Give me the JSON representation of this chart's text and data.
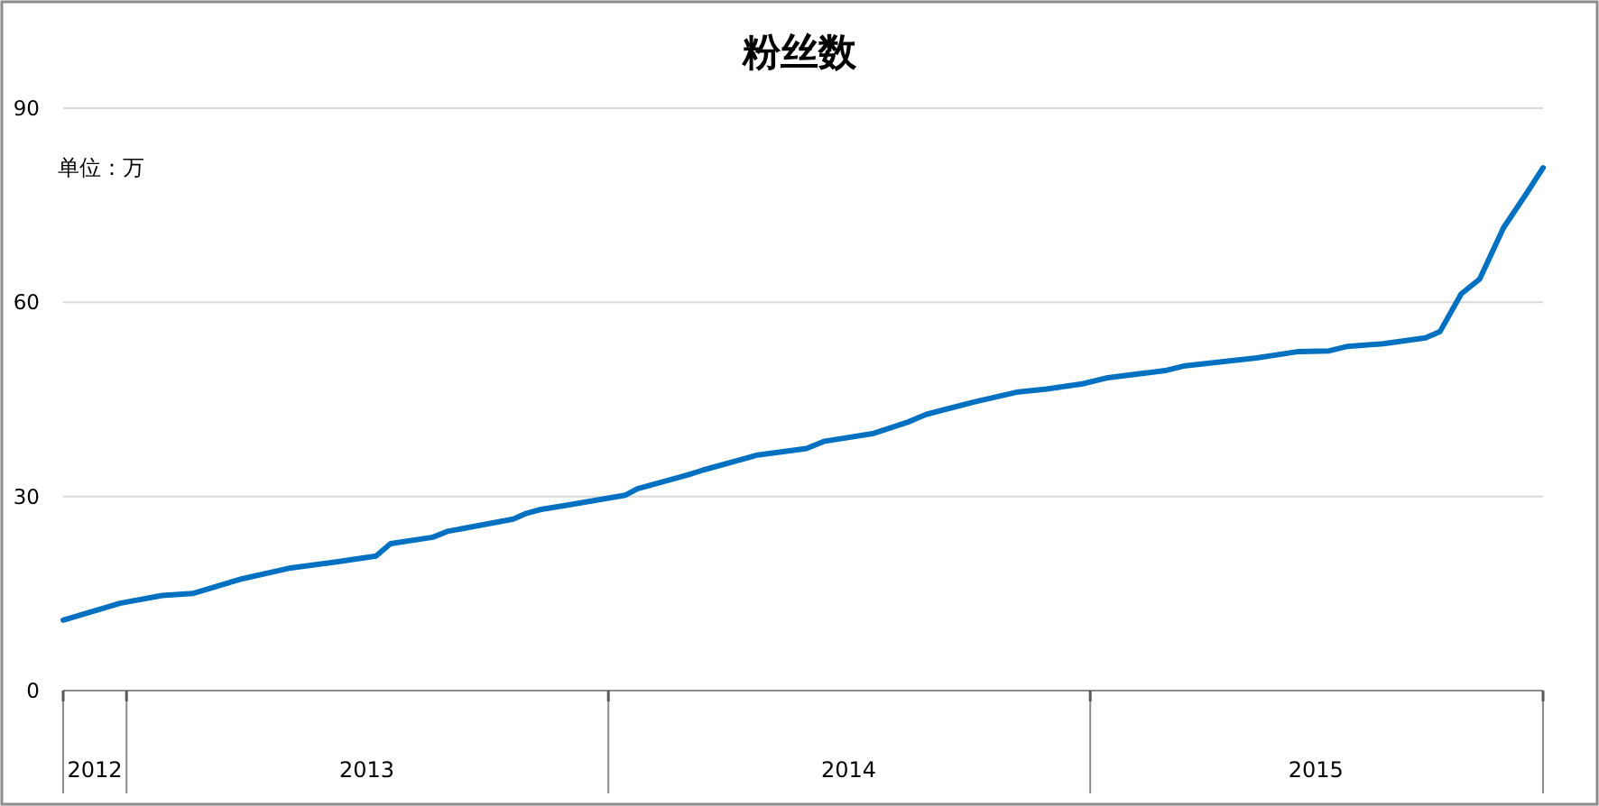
{
  "chart_data": {
    "type": "line",
    "title": "粉丝数",
    "annotations": [
      "单位：万"
    ],
    "x": [
      "2012-11-14",
      "2012-12-27",
      "2013-01-28",
      "2013-02-20",
      "2013-03-28",
      "2013-05-04",
      "2013-06-09",
      "2013-07-09",
      "2013-07-20",
      "2013-08-21",
      "2013-09-01",
      "2013-10-21",
      "2013-10-31",
      "2013-11-11",
      "2013-11-29",
      "2014-01-14",
      "2014-01-23",
      "2014-02-28",
      "2014-03-14",
      "2014-04-24",
      "2014-05-31",
      "2014-06-13",
      "2014-07-20",
      "2014-08-16",
      "2014-08-30",
      "2014-10-05",
      "2014-11-06",
      "2014-11-29",
      "2014-12-26",
      "2015-01-13",
      "2015-02-28",
      "2015-03-14",
      "2015-05-07",
      "2015-06-08",
      "2015-07-01",
      "2015-07-15",
      "2015-08-11",
      "2015-09-12",
      "2015-09-23",
      "2015-10-09",
      "2015-10-23",
      "2015-11-10",
      "2015-11-28",
      "2015-12-10"
    ],
    "series": [
      {
        "color": "#0070c0",
        "values": [
          10.9,
          13.5,
          14.7,
          15.0,
          17.2,
          18.9,
          19.9,
          20.8,
          22.7,
          23.7,
          24.6,
          26.5,
          27.4,
          28.0,
          28.6,
          30.2,
          31.2,
          33.2,
          34.1,
          36.4,
          37.4,
          38.5,
          39.7,
          41.5,
          42.7,
          44.6,
          46.1,
          46.6,
          47.4,
          48.3,
          49.5,
          50.2,
          51.4,
          52.4,
          52.5,
          53.2,
          53.6,
          54.5,
          55.5,
          61.3,
          63.6,
          71.5,
          77.0,
          80.8
        ]
      }
    ],
    "xlim": [
      "2012-11-14",
      "2015-12-10"
    ],
    "xticks": [
      {
        "value": "2012-11-14",
        "label": null
      },
      {
        "value": "2012-12-08",
        "label": "2012"
      },
      {
        "value": "2013-01-01",
        "label": null
      },
      {
        "value": "2013-07-02",
        "label": "2013"
      },
      {
        "value": "2014-01-01",
        "label": null
      },
      {
        "value": "2014-07-02",
        "label": "2014"
      },
      {
        "value": "2015-01-01",
        "label": null
      },
      {
        "value": "2015-06-21",
        "label": "2015"
      },
      {
        "value": "2015-12-10",
        "label": null
      }
    ],
    "ylim": [
      0,
      90
    ],
    "yticks": [
      0,
      30,
      60,
      90
    ],
    "grid": "y"
  }
}
